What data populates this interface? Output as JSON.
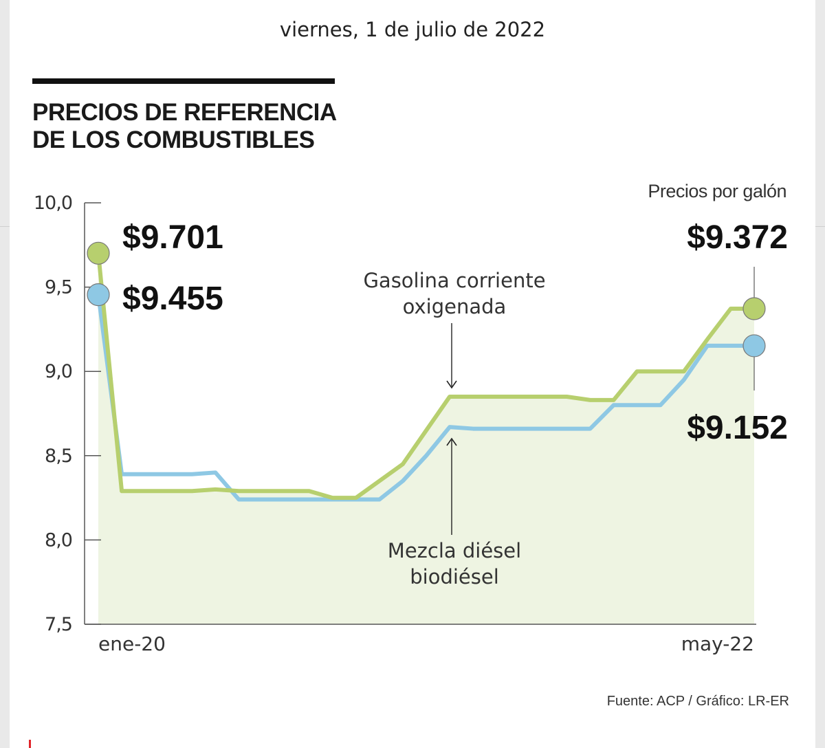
{
  "header": {
    "date": "viernes, 1 de julio de 2022"
  },
  "chart_data": {
    "type": "line",
    "title": "PRECIOS DE REFERENCIA DE LOS COMBUSTIBLES",
    "title_lines": [
      "PRECIOS DE REFERENCIA",
      "DE LOS COMBUSTIBLES"
    ],
    "unit_note": "Precios por galón",
    "ylim": [
      7.5,
      10.0
    ],
    "y_ticks": [
      "10,0",
      "9,5",
      "9,0",
      "8,5",
      "8,0",
      "7,5"
    ],
    "y_tick_values": [
      10.0,
      9.5,
      9.0,
      8.5,
      8.0,
      7.5
    ],
    "x_labels": [
      "ene-20",
      "may-22"
    ],
    "n_points": 29,
    "series": [
      {
        "name": "Gasolina corriente oxigenada",
        "label_lines": [
          "Gasolina corriente",
          "oxigenada"
        ],
        "color": "#b7cf6e",
        "start_label": "$9.701",
        "end_label": "$9.372",
        "values": [
          9.701,
          8.29,
          8.29,
          8.29,
          8.29,
          8.3,
          8.29,
          8.29,
          8.29,
          8.29,
          8.25,
          8.25,
          8.35,
          8.45,
          8.65,
          8.85,
          8.85,
          8.85,
          8.85,
          8.85,
          8.85,
          8.83,
          8.83,
          9.0,
          9.0,
          9.0,
          9.19,
          9.372,
          9.372
        ]
      },
      {
        "name": "Mezcla diésel biodiésel",
        "label_lines": [
          "Mezcla diésel",
          "biodiésel"
        ],
        "color": "#8ec8e4",
        "start_label": "$9.455",
        "end_label": "$9.152",
        "values": [
          9.455,
          8.39,
          8.39,
          8.39,
          8.39,
          8.4,
          8.24,
          8.24,
          8.24,
          8.24,
          8.24,
          8.24,
          8.24,
          8.35,
          8.5,
          8.67,
          8.66,
          8.66,
          8.66,
          8.66,
          8.66,
          8.66,
          8.8,
          8.8,
          8.8,
          8.95,
          9.152,
          9.152,
          9.152
        ]
      }
    ]
  },
  "footer": {
    "source": "Fuente: ACP / Gráfico: LR-ER"
  }
}
